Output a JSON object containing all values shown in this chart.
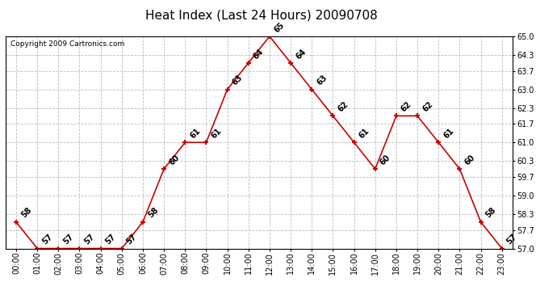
{
  "title": "Heat Index (Last 24 Hours) 20090708",
  "copyright": "Copyright 2009 Cartronics.com",
  "hours": [
    "00:00",
    "01:00",
    "02:00",
    "03:00",
    "04:00",
    "05:00",
    "06:00",
    "07:00",
    "08:00",
    "09:00",
    "10:00",
    "11:00",
    "12:00",
    "13:00",
    "14:00",
    "15:00",
    "16:00",
    "17:00",
    "18:00",
    "19:00",
    "20:00",
    "21:00",
    "22:00",
    "23:00"
  ],
  "values": [
    58,
    57,
    57,
    57,
    57,
    57,
    58,
    60,
    61,
    61,
    63,
    64,
    65,
    64,
    63,
    62,
    61,
    60,
    62,
    62,
    61,
    60,
    58,
    57
  ],
  "line_color": "#cc0000",
  "marker": "+",
  "marker_color": "#cc0000",
  "bg_color": "#ffffff",
  "grid_color": "#bbbbbb",
  "ylim_min": 57.0,
  "ylim_max": 65.0,
  "yticks": [
    57.0,
    57.7,
    58.3,
    59.0,
    59.7,
    60.3,
    61.0,
    61.7,
    62.3,
    63.0,
    63.7,
    64.3,
    65.0
  ],
  "title_fontsize": 11,
  "annotation_fontsize": 7,
  "tick_fontsize": 7,
  "copyright_fontsize": 6.5
}
